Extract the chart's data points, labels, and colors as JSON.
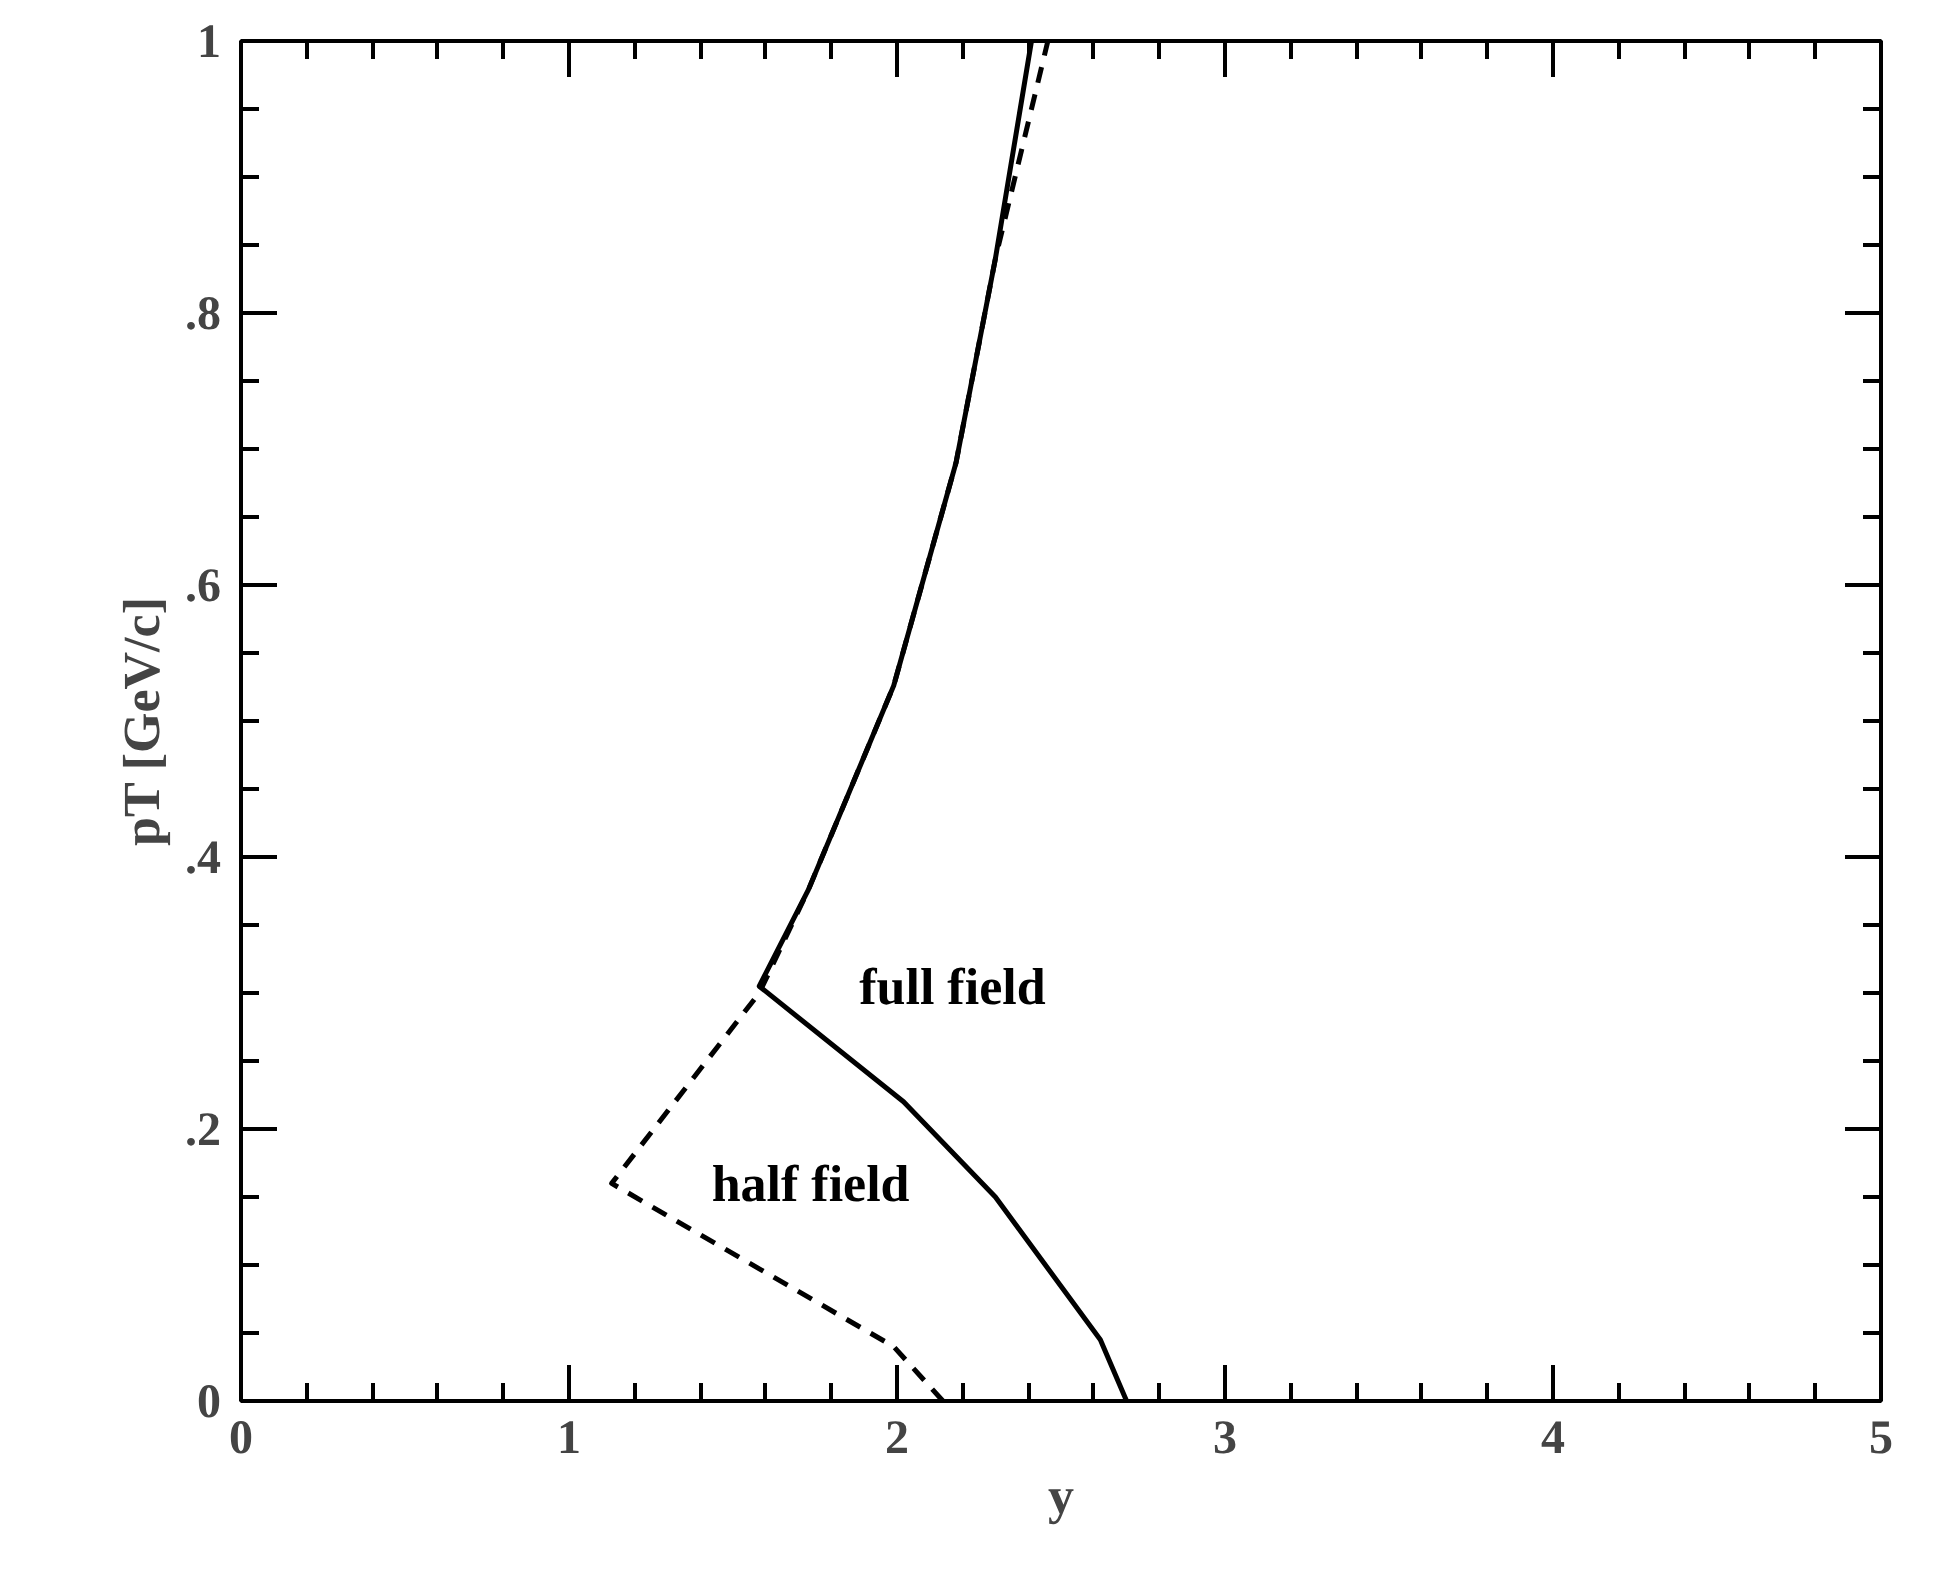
{
  "chart_data": {
    "type": "line",
    "xlabel": "y",
    "ylabel": "pT [GeV/c]",
    "xlim": [
      0,
      5
    ],
    "ylim": [
      0,
      1
    ],
    "xticks": [
      0,
      1,
      2,
      3,
      4,
      5,
      {
        "value": 0.2,
        "label": null
      },
      {
        "value": 0.4,
        "label": null
      },
      {
        "value": 0.6,
        "label": null
      },
      {
        "value": 0.8,
        "label": null
      },
      {
        "value": 1.2,
        "label": null
      },
      {
        "value": 1.4,
        "label": null
      },
      {
        "value": 1.6,
        "label": null
      },
      {
        "value": 1.8,
        "label": null
      },
      {
        "value": 2.2,
        "label": null
      },
      {
        "value": 2.4,
        "label": null
      },
      {
        "value": 2.6,
        "label": null
      },
      {
        "value": 2.8,
        "label": null
      },
      {
        "value": 3.2,
        "label": null
      },
      {
        "value": 3.4,
        "label": null
      },
      {
        "value": 3.6,
        "label": null
      },
      {
        "value": 3.8,
        "label": null
      },
      {
        "value": 4.2,
        "label": null
      },
      {
        "value": 4.4,
        "label": null
      },
      {
        "value": 4.6,
        "label": null
      },
      {
        "value": 4.8,
        "label": null
      }
    ],
    "yticks": [
      {
        "value": 0,
        "label": "0"
      },
      {
        "value": 0.2,
        "label": ".2"
      },
      {
        "value": 0.4,
        "label": ".4"
      },
      {
        "value": 0.6,
        "label": ".6"
      },
      {
        "value": 0.8,
        "label": ".8"
      },
      {
        "value": 1,
        "label": "1"
      },
      {
        "value": 0.05,
        "label": null
      },
      {
        "value": 0.1,
        "label": null
      },
      {
        "value": 0.15,
        "label": null
      },
      {
        "value": 0.25,
        "label": null
      },
      {
        "value": 0.3,
        "label": null
      },
      {
        "value": 0.35,
        "label": null
      },
      {
        "value": 0.45,
        "label": null
      },
      {
        "value": 0.5,
        "label": null
      },
      {
        "value": 0.55,
        "label": null
      },
      {
        "value": 0.65,
        "label": null
      },
      {
        "value": 0.7,
        "label": null
      },
      {
        "value": 0.75,
        "label": null
      },
      {
        "value": 0.85,
        "label": null
      },
      {
        "value": 0.9,
        "label": null
      },
      {
        "value": 0.95,
        "label": null
      }
    ],
    "grid": false,
    "marker": "none",
    "series": [
      {
        "name": "full field",
        "color": "#000000",
        "line_style": "solid",
        "x": [
          2.7,
          2.62,
          2.3,
          2.02,
          1.58,
          1.73,
          1.99,
          2.18,
          2.3,
          2.41
        ],
        "values": [
          0,
          0.045,
          0.15,
          0.22,
          0.305,
          0.376,
          0.526,
          0.69,
          0.84,
          1.0
        ]
      },
      {
        "name": "half field",
        "color": "#000000",
        "line_style": "dashed",
        "x": [
          2.14,
          1.99,
          1.13,
          1.58,
          1.73,
          1.99,
          2.18,
          2.3,
          2.46
        ],
        "values": [
          0,
          0.04,
          0.16,
          0.3,
          0.376,
          0.526,
          0.69,
          0.84,
          1.0
        ]
      }
    ]
  }
}
